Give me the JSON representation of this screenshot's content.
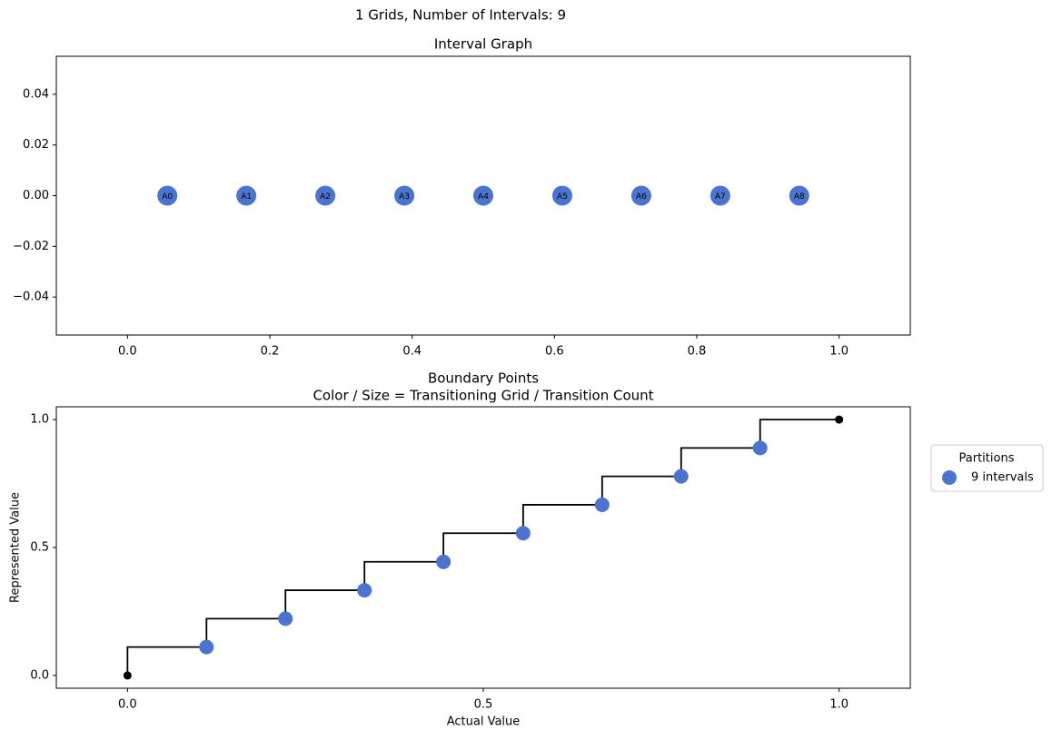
{
  "title": "1 Grids, Number of Intervals: 9",
  "chart_data": [
    {
      "type": "scatter",
      "title": "Interval Graph",
      "x": [
        0.056,
        0.167,
        0.278,
        0.389,
        0.5,
        0.611,
        0.722,
        0.833,
        0.944
      ],
      "values": [
        0,
        0,
        0,
        0,
        0,
        0,
        0,
        0,
        0
      ],
      "labels": [
        "A0",
        "A1",
        "A2",
        "A3",
        "A4",
        "A5",
        "A6",
        "A7",
        "A8"
      ],
      "color": "#4a74cf",
      "xlim": [
        -0.1,
        1.1
      ],
      "ylim": [
        -0.055,
        0.055
      ],
      "xticks": [
        {
          "value": 0,
          "label": "0.0"
        },
        {
          "value": 0.2,
          "label": "0.2"
        },
        {
          "value": 0.4,
          "label": "0.4"
        },
        {
          "value": 0.6,
          "label": "0.6"
        },
        {
          "value": 0.8,
          "label": "0.8"
        },
        {
          "value": 1,
          "label": "1.0"
        }
      ],
      "yticks": [
        {
          "value": -0.04,
          "label": "−0.04"
        },
        {
          "value": -0.02,
          "label": "−0.02"
        },
        {
          "value": 0,
          "label": "0.00"
        },
        {
          "value": 0.02,
          "label": "0.02"
        },
        {
          "value": 0.04,
          "label": "0.04"
        }
      ]
    },
    {
      "type": "step",
      "title": [
        "Boundary Points",
        "Color / Size = Transitioning Grid / Transition Count"
      ],
      "xlabel": "Actual Value",
      "ylabel": "Represented Value",
      "line": {
        "color": "#000000",
        "x": [
          0,
          0.111,
          0.222,
          0.333,
          0.444,
          0.556,
          0.667,
          0.778,
          0.889,
          1
        ],
        "values": [
          0,
          0.111,
          0.222,
          0.333,
          0.444,
          0.556,
          0.667,
          0.778,
          0.889,
          1
        ]
      },
      "series": [
        {
          "name": "9 intervals",
          "color": "#4a74cf",
          "x": [
            0.111,
            0.222,
            0.333,
            0.444,
            0.556,
            0.667,
            0.778,
            0.889
          ],
          "values": [
            0.111,
            0.222,
            0.333,
            0.444,
            0.556,
            0.667,
            0.778,
            0.889
          ]
        }
      ],
      "legend": {
        "title": "Partitions",
        "position": "outside right"
      },
      "xlim": [
        -0.1,
        1.1
      ],
      "ylim": [
        -0.05,
        1.05
      ],
      "xticks": [
        {
          "value": 0,
          "label": "0.0"
        },
        {
          "value": 0.5,
          "label": "0.5"
        },
        {
          "value": 1,
          "label": "1.0"
        }
      ],
      "yticks": [
        {
          "value": 0,
          "label": "0.0"
        },
        {
          "value": 0.5,
          "label": "0.5"
        },
        {
          "value": 1,
          "label": "1.0"
        }
      ]
    }
  ]
}
